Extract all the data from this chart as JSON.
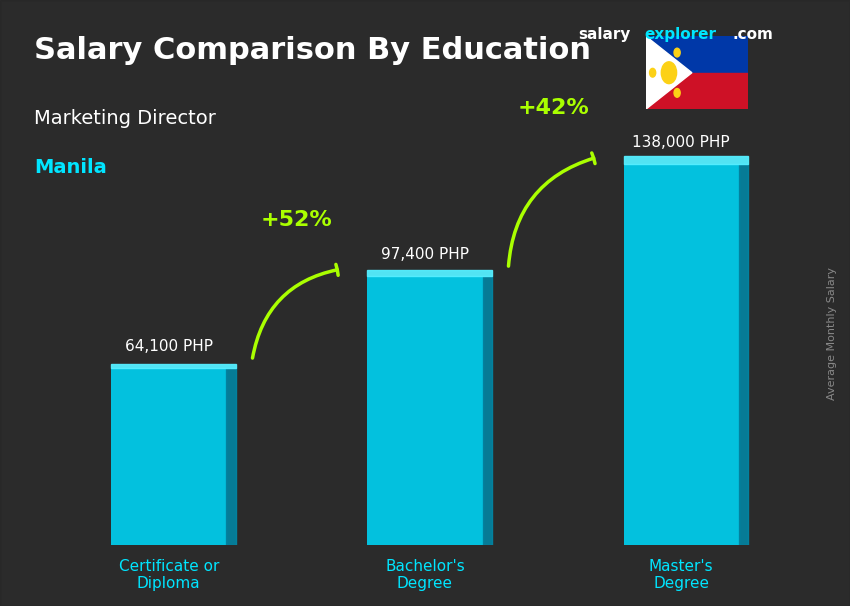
{
  "title": "Salary Comparison By Education",
  "subtitle": "Marketing Director",
  "city": "Manila",
  "ylabel": "Average Monthly Salary",
  "categories": [
    "Certificate or\nDiploma",
    "Bachelor's\nDegree",
    "Master's\nDegree"
  ],
  "values": [
    64100,
    97400,
    138000
  ],
  "value_labels": [
    "64,100 PHP",
    "97,400 PHP",
    "138,000 PHP"
  ],
  "pct_labels": [
    "+52%",
    "+42%"
  ],
  "bar_color_top": "#00e5ff",
  "bar_color_mid": "#00bcd4",
  "bar_color_bottom": "#0097a7",
  "bg_color": "#1a1a2e",
  "title_color": "#ffffff",
  "subtitle_color": "#ffffff",
  "city_color": "#00e5ff",
  "label_color": "#ffffff",
  "pct_color": "#aaff00",
  "xtick_color": "#00e5ff",
  "brand_salary": "salary",
  "brand_explorer": "explorer",
  "brand_com": ".com",
  "brand_color_salary": "#ffffff",
  "brand_color_explorer": "#00e5ff",
  "watermark_color": "#888888",
  "ylim": [
    0,
    170000
  ],
  "bar_width": 0.45
}
